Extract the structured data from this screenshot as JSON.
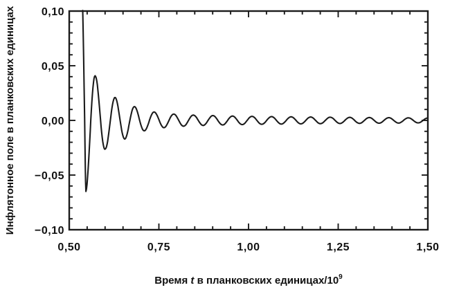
{
  "chart_data": {
    "type": "line",
    "title": "",
    "ylabel": "Инфлятонное поле в планковских единицах",
    "xlabel": {
      "pre": "Время ",
      "italic": "t",
      "post": " в планковских единицах/10",
      "sup": "9"
    },
    "xlim": [
      0.5,
      1.5
    ],
    "ylim": [
      -0.1,
      0.1
    ],
    "x_major_ticks": [
      0.5,
      0.75,
      1.0,
      1.25,
      1.5
    ],
    "x_tick_labels": [
      "0,50",
      "0,75",
      "1,00",
      "1,25",
      "1,50"
    ],
    "x_minor_step": 0.05,
    "y_major_ticks": [
      0.1,
      0.05,
      0.0,
      -0.05,
      -0.1
    ],
    "y_tick_labels": [
      "0,10",
      "0,05",
      "0,00",
      "−0,05",
      "−0,10"
    ],
    "y_minor_step": 0.01,
    "grid": false,
    "legend": "none",
    "line_color": "#1b1b1b",
    "background_color": "#ffffff",
    "series": [
      {
        "name": "inflaton-field",
        "entry_points": [
          [
            0.5376,
            0.1005
          ],
          [
            0.5388,
            0.082
          ],
          [
            0.5402,
            0.058
          ],
          [
            0.5416,
            0.03
          ],
          [
            0.5428,
            0.004
          ],
          [
            0.5438,
            -0.02
          ],
          [
            0.5448,
            -0.042
          ],
          [
            0.5456,
            -0.056
          ],
          [
            0.5465,
            -0.065
          ]
        ],
        "oscillation": {
          "t_min_first": 0.5465,
          "period": 0.0545,
          "t_end": 1.5,
          "waveform": "phi(t) = -A(t) * cos(2*pi*(t - t_min_first)/period)",
          "envelope": [
            [
              0.5465,
              0.065
            ],
            [
              0.5738,
              0.04
            ],
            [
              0.601,
              0.026
            ],
            [
              0.628,
              0.021
            ],
            [
              0.6555,
              0.017
            ],
            [
              0.683,
              0.0125
            ],
            [
              0.71,
              0.0095
            ],
            [
              0.74,
              0.0075
            ],
            [
              0.79,
              0.0058
            ],
            [
              0.85,
              0.0048
            ],
            [
              0.95,
              0.004
            ],
            [
              1.05,
              0.0035
            ],
            [
              1.2,
              0.003
            ],
            [
              1.35,
              0.0026
            ],
            [
              1.5,
              0.0022
            ]
          ]
        }
      }
    ]
  }
}
